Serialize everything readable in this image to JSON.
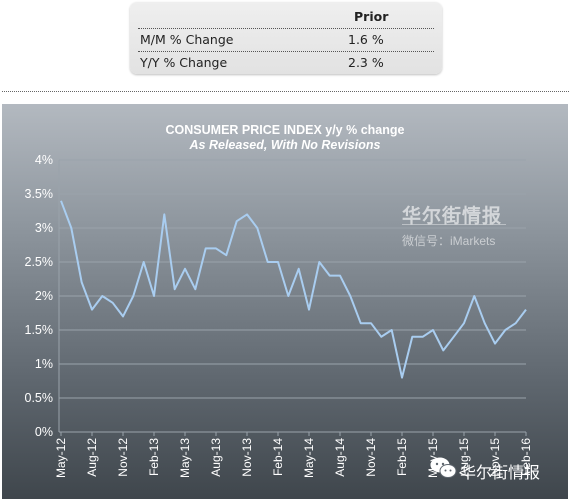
{
  "table": {
    "header": "Prior",
    "rows": [
      {
        "label": "M/M % Change",
        "value": "1.6 %"
      },
      {
        "label": "Y/Y % Change",
        "value": "2.3 %"
      }
    ]
  },
  "watermark": {
    "name": "华尔街情报",
    "wechat": "微信号：iMarkets"
  },
  "badge": {
    "text": "华尔街情报",
    "icon": "wechat-icon"
  },
  "colors": {
    "line": "#a9cdf0",
    "grid": "#9aa3ab",
    "text": "#ffffff"
  },
  "chart_data": {
    "type": "line",
    "title": "CONSUMER PRICE INDEX y/y % change",
    "subtitle": "As Released, With No Revisions",
    "x_ticks": [
      "May-12",
      "Aug-12",
      "Nov-12",
      "Feb-13",
      "May-13",
      "Aug-13",
      "Nov-13",
      "Feb-14",
      "May-14",
      "Aug-14",
      "Nov-14",
      "Feb-15",
      "May-15",
      "Aug-15",
      "Nov-15",
      "Feb-16"
    ],
    "y_ticks": [
      "4%",
      "3.5%",
      "3%",
      "2.5%",
      "2%",
      "1.5%",
      "1%",
      "0.5%",
      "0%"
    ],
    "ylim": [
      0,
      4
    ],
    "grid": true,
    "series": [
      {
        "x": [
          "May-12",
          "Jun-12",
          "Jul-12",
          "Aug-12",
          "Sep-12",
          "Oct-12",
          "Nov-12",
          "Dec-12",
          "Jan-13",
          "Feb-13",
          "Mar-13",
          "Apr-13",
          "May-13",
          "Jun-13",
          "Jul-13",
          "Aug-13",
          "Sep-13",
          "Oct-13",
          "Nov-13",
          "Dec-13",
          "Jan-14",
          "Feb-14",
          "Mar-14",
          "Apr-14",
          "May-14",
          "Jun-14",
          "Jul-14",
          "Aug-14",
          "Sep-14",
          "Oct-14",
          "Nov-14",
          "Dec-14",
          "Jan-15",
          "Feb-15",
          "Mar-15",
          "Apr-15",
          "May-15",
          "Jun-15",
          "Jul-15",
          "Aug-15",
          "Sep-15",
          "Oct-15",
          "Nov-15",
          "Dec-15",
          "Jan-16",
          "Feb-16"
        ],
        "values": [
          3.4,
          3.0,
          2.2,
          1.8,
          2.0,
          1.9,
          1.7,
          2.0,
          2.5,
          2.0,
          3.2,
          2.1,
          2.4,
          2.1,
          2.7,
          2.7,
          2.6,
          3.1,
          3.2,
          3.0,
          2.5,
          2.5,
          2.0,
          2.4,
          1.8,
          2.5,
          2.3,
          2.3,
          2.0,
          1.6,
          1.6,
          1.4,
          1.5,
          0.8,
          1.4,
          1.4,
          1.5,
          1.2,
          1.4,
          1.6,
          2.0,
          1.6,
          1.3,
          1.5,
          1.6,
          1.8
        ]
      }
    ]
  }
}
